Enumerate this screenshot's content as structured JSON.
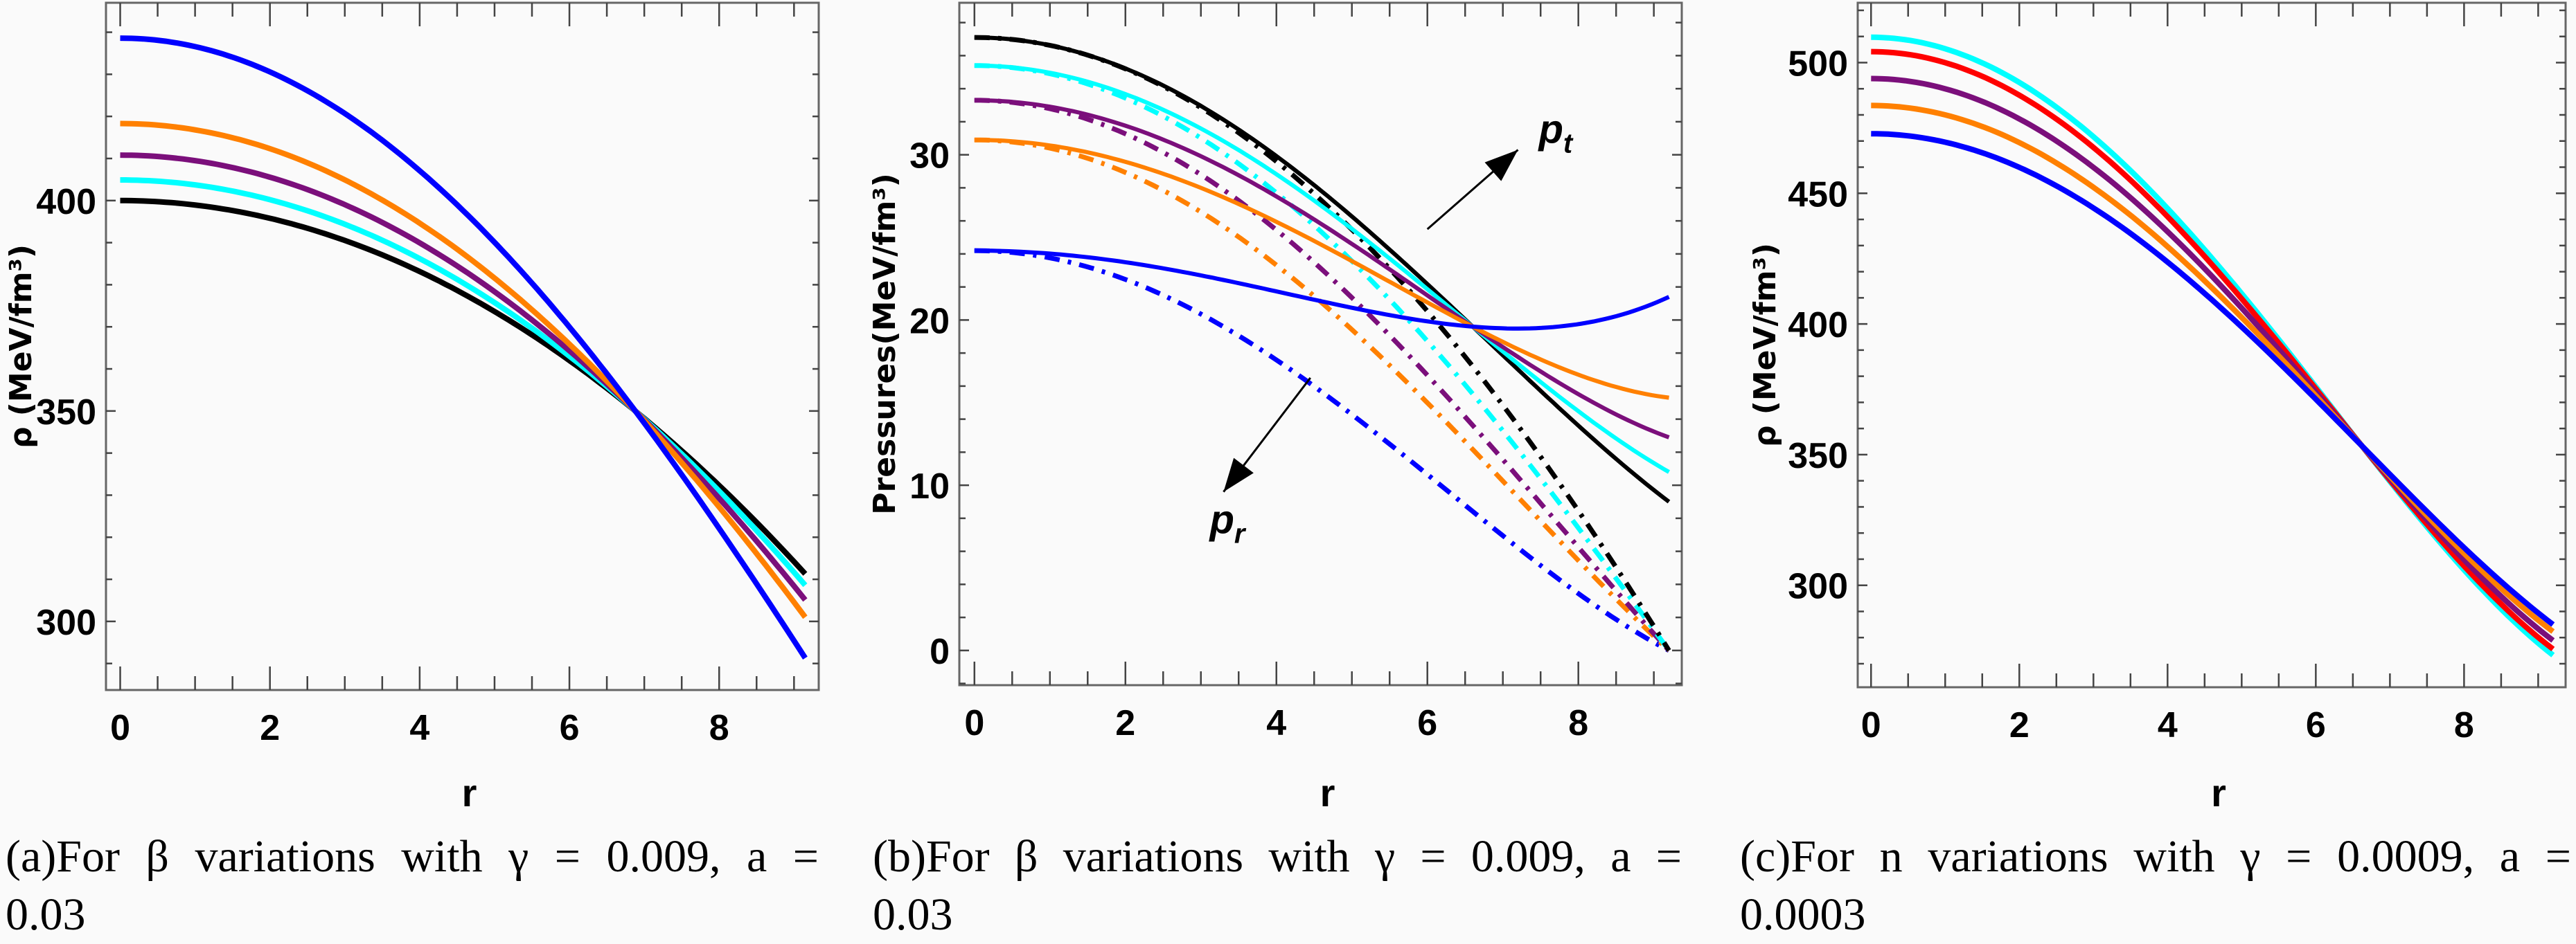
{
  "captions": [
    "(a)For β variations with γ = 0.009,  a = 0.03",
    "(b)For β variations with γ = 0.009,  a = 0.03",
    "(c)For n variations with γ = 0.0009,  a = 0.0003"
  ],
  "chart_data": [
    {
      "type": "line",
      "xlabel": "r",
      "ylabel": "ρ (MeV/fm³)",
      "xlim": [
        -0.19,
        9.33
      ],
      "ylim": [
        283.7,
        447
      ],
      "xticks": [
        0,
        2,
        4,
        6,
        8
      ],
      "yticks": [
        300,
        350,
        400
      ],
      "x_minor_step": 0.5,
      "y_minor_step": 10,
      "grid": false,
      "series": [
        {
          "color": "#000000",
          "style": "solid",
          "points": [
            [
              0,
              400
            ],
            [
              6.88,
              350
            ],
            [
              9.15,
              311.3
            ]
          ]
        },
        {
          "color": "#00ffff",
          "style": "solid",
          "points": [
            [
              0,
              404.9
            ],
            [
              6.88,
              350
            ],
            [
              9.15,
              308.6
            ]
          ]
        },
        {
          "color": "#7b0f7b",
          "style": "solid",
          "points": [
            [
              0,
              410.8
            ],
            [
              6.88,
              350
            ],
            [
              9.15,
              305.1
            ]
          ]
        },
        {
          "color": "#ff8000",
          "style": "solid",
          "points": [
            [
              0,
              418.3
            ],
            [
              6.88,
              350
            ],
            [
              9.15,
              301
            ]
          ]
        },
        {
          "color": "#0000ff",
          "style": "solid",
          "points": [
            [
              0,
              438.6
            ],
            [
              6.88,
              350
            ],
            [
              9.15,
              291.3
            ]
          ]
        }
      ]
    },
    {
      "type": "line",
      "xlabel": "r",
      "ylabel": "Pressures(MeV/fm³)",
      "xlim": [
        -0.2,
        9.37
      ],
      "ylim": [
        -2.1,
        39.2
      ],
      "xticks": [
        0,
        2,
        4,
        6,
        8
      ],
      "yticks": [
        0,
        10,
        20,
        30
      ],
      "x_minor_step": 0.5,
      "y_minor_step": 2,
      "grid": false,
      "annotations": [
        {
          "text": "p",
          "sub": "t",
          "arrow_from": [
            6.0,
            25.5
          ],
          "arrow_to": [
            7.2,
            30.3
          ]
        },
        {
          "text": "p",
          "sub": "r",
          "arrow_from": [
            4.45,
            16.5
          ],
          "arrow_to": [
            3.3,
            9.6
          ]
        }
      ],
      "series": [
        {
          "name": "p_r",
          "color": "#0000ff",
          "style": "dashdot",
          "points": [
            [
              0,
              24.2
            ],
            [
              4.42,
              16.25
            ],
            [
              9.2,
              0
            ]
          ]
        },
        {
          "name": "p_r",
          "color": "#ff8000",
          "style": "dashdot",
          "points": [
            [
              0,
              30.9
            ],
            [
              4.86,
              20
            ],
            [
              9.2,
              0
            ]
          ]
        },
        {
          "name": "p_r",
          "color": "#7b0f7b",
          "style": "dashdot",
          "points": [
            [
              0,
              33.3
            ],
            [
              5.3,
              20
            ],
            [
              9.2,
              0
            ]
          ]
        },
        {
          "name": "p_r",
          "color": "#00ffff",
          "style": "dashdot",
          "points": [
            [
              0,
              35.4
            ],
            [
              5.75,
              20
            ],
            [
              9.2,
              0
            ]
          ]
        },
        {
          "name": "p_r",
          "color": "#000000",
          "style": "dashdot",
          "points": [
            [
              0,
              37.1
            ],
            [
              6.1,
              20
            ],
            [
              9.2,
              0
            ]
          ]
        },
        {
          "name": "p_t",
          "color": "#000000",
          "style": "solid",
          "points": [
            [
              0,
              37.1
            ],
            [
              6.6,
              19.6
            ],
            [
              9.2,
              9.0
            ]
          ]
        },
        {
          "name": "p_t",
          "color": "#00ffff",
          "style": "solid",
          "points": [
            [
              0,
              35.4
            ],
            [
              6.6,
              19.6
            ],
            [
              9.2,
              10.8
            ]
          ]
        },
        {
          "name": "p_t",
          "color": "#7b0f7b",
          "style": "solid",
          "points": [
            [
              0,
              33.3
            ],
            [
              6.6,
              19.6
            ],
            [
              9.2,
              12.9
            ]
          ]
        },
        {
          "name": "p_t",
          "color": "#ff8000",
          "style": "solid",
          "points": [
            [
              0,
              30.9
            ],
            [
              6.6,
              19.6
            ],
            [
              9.2,
              15.3
            ]
          ]
        },
        {
          "name": "p_t",
          "color": "#0000ff",
          "style": "solid",
          "points": [
            [
              0,
              24.2
            ],
            [
              6.6,
              19.6
            ],
            [
              9.2,
              21.4
            ]
          ]
        }
      ]
    },
    {
      "type": "line",
      "xlabel": "r",
      "ylabel": "ρ (MeV/fm³)",
      "xlim": [
        -0.18,
        9.37
      ],
      "ylim": [
        261,
        522.9
      ],
      "xticks": [
        0,
        2,
        4,
        6,
        8
      ],
      "yticks": [
        300,
        350,
        400,
        450,
        500
      ],
      "x_minor_step": 0.5,
      "y_minor_step": 10,
      "grid": false,
      "series": [
        {
          "color": "#00ffff",
          "style": "solid",
          "points": [
            [
              0,
              509.7
            ],
            [
              6.62,
              353.4
            ],
            [
              9.2,
              273.3
            ]
          ]
        },
        {
          "color": "#ff0000",
          "style": "solid",
          "points": [
            [
              0,
              504.2
            ],
            [
              6.62,
              353.4
            ],
            [
              9.2,
              275.6
            ]
          ]
        },
        {
          "color": "#7b0f7b",
          "style": "solid",
          "points": [
            [
              0,
              493.9
            ],
            [
              6.62,
              353.4
            ],
            [
              9.2,
              278.9
            ]
          ]
        },
        {
          "color": "#ff8000",
          "style": "solid",
          "points": [
            [
              0,
              483.6
            ],
            [
              6.62,
              353.4
            ],
            [
              9.2,
              282.3
            ]
          ]
        },
        {
          "color": "#0000ff",
          "style": "solid",
          "points": [
            [
              0,
              472.8
            ],
            [
              6.62,
              353.4
            ],
            [
              9.2,
              285
            ]
          ]
        }
      ]
    }
  ]
}
